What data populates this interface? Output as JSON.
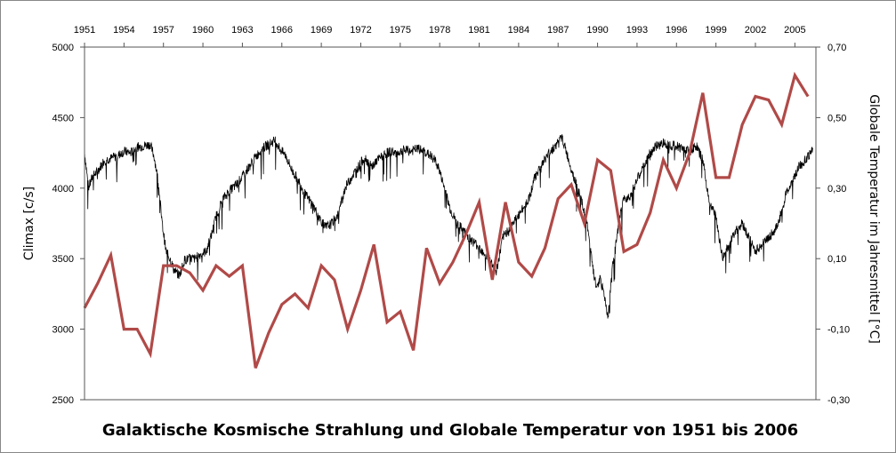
{
  "chart_data": {
    "type": "line",
    "title": "Galaktische  Kosmische Strahlung und Globale Temperatur von 1951 bis 2006",
    "left_axis_label": "Climax [c/s]",
    "right_axis_label": "Globale Temperatur im Jahresmittel [°C]",
    "x_ticks": [
      "1951",
      "1954",
      "1957",
      "1960",
      "1963",
      "1966",
      "1969",
      "1972",
      "1975",
      "1978",
      "1981",
      "1984",
      "1987",
      "1990",
      "1993",
      "1996",
      "1999",
      "2002",
      "2005"
    ],
    "xlim": [
      1951,
      2006.6
    ],
    "left_ticks": [
      "2500",
      "3000",
      "3500",
      "4000",
      "4500",
      "5000"
    ],
    "left_ylim": [
      2500,
      5000
    ],
    "right_ticks": [
      "-0,30",
      "-0,10",
      "0,10",
      "0,30",
      "0,50",
      "0,70"
    ],
    "right_ylim": [
      -0.3,
      0.7
    ],
    "grid": false,
    "colors": {
      "cosmic_ray": "#000000",
      "temperature": "#b04a48"
    },
    "series": [
      {
        "axis": "left",
        "x": [
          1951.0,
          1951.3,
          1951.6,
          1952.0,
          1952.5,
          1953.0,
          1953.5,
          1954.0,
          1954.5,
          1955.0,
          1955.5,
          1956.0,
          1956.3,
          1956.6,
          1956.9,
          1957.2,
          1957.5,
          1957.8,
          1958.2,
          1958.6,
          1959.0,
          1959.4,
          1959.8,
          1960.2,
          1960.6,
          1961.0,
          1961.5,
          1962.0,
          1962.5,
          1963.0,
          1963.5,
          1964.0,
          1964.5,
          1965.0,
          1965.5,
          1965.9,
          1966.3,
          1966.8,
          1967.3,
          1967.8,
          1968.3,
          1968.8,
          1969.3,
          1969.8,
          1970.3,
          1970.8,
          1971.3,
          1971.8,
          1972.3,
          1972.8,
          1973.3,
          1973.8,
          1974.3,
          1974.8,
          1975.3,
          1975.8,
          1976.3,
          1976.8,
          1977.3,
          1977.8,
          1978.3,
          1978.8,
          1979.3,
          1979.8,
          1980.3,
          1980.8,
          1981.3,
          1981.8,
          1982.3,
          1982.8,
          1983.3,
          1983.8,
          1984.3,
          1984.8,
          1985.3,
          1985.8,
          1986.3,
          1986.8,
          1987.3,
          1987.8,
          1988.3,
          1988.8,
          1989.3,
          1989.6,
          1989.9,
          1990.2,
          1990.5,
          1990.8,
          1991.1,
          1991.4,
          1991.7,
          1992.0,
          1992.5,
          1993.0,
          1993.5,
          1994.0,
          1994.5,
          1995.0,
          1995.5,
          1996.0,
          1996.5,
          1997.0,
          1997.5,
          1998.0,
          1998.5,
          1999.0,
          1999.5,
          2000.0,
          2000.5,
          2001.0,
          2001.5,
          2002.0,
          2002.5,
          2003.0,
          2003.5,
          2003.9,
          2004.3,
          2004.8,
          2005.3,
          2005.8,
          2006.4
        ],
        "values": [
          4260,
          4000,
          4080,
          4120,
          4200,
          4210,
          4230,
          4260,
          4250,
          4290,
          4300,
          4310,
          4220,
          4050,
          3750,
          3550,
          3500,
          3420,
          3380,
          3490,
          3500,
          3500,
          3530,
          3550,
          3650,
          3800,
          3920,
          3980,
          4020,
          4080,
          4150,
          4220,
          4280,
          4310,
          4340,
          4270,
          4230,
          4120,
          4050,
          3950,
          3890,
          3800,
          3720,
          3750,
          3820,
          4000,
          4080,
          4150,
          4220,
          4150,
          4200,
          4240,
          4260,
          4250,
          4270,
          4260,
          4280,
          4260,
          4230,
          4180,
          4020,
          3850,
          3750,
          3700,
          3640,
          3600,
          3550,
          3500,
          3400,
          3650,
          3720,
          3780,
          3850,
          3930,
          4100,
          4170,
          4250,
          4300,
          4360,
          4200,
          4050,
          3900,
          3700,
          3450,
          3300,
          3350,
          3250,
          3080,
          3420,
          3600,
          3800,
          3920,
          3950,
          4060,
          4150,
          4250,
          4300,
          4320,
          4310,
          4300,
          4280,
          4260,
          4300,
          4200,
          3900,
          3800,
          3500,
          3600,
          3700,
          3750,
          3650,
          3550,
          3600,
          3650,
          3700,
          3800,
          3950,
          4050,
          4150,
          4200,
          4280
        ]
      },
      {
        "axis": "right",
        "x": [
          1951,
          1952,
          1953,
          1954,
          1955,
          1956,
          1957,
          1958,
          1959,
          1960,
          1961,
          1962,
          1963,
          1964,
          1965,
          1966,
          1967,
          1968,
          1969,
          1970,
          1971,
          1972,
          1973,
          1974,
          1975,
          1976,
          1977,
          1978,
          1979,
          1980,
          1981,
          1982,
          1983,
          1984,
          1985,
          1986,
          1987,
          1988,
          1989,
          1990,
          1991,
          1992,
          1993,
          1994,
          1995,
          1996,
          1997,
          1998,
          1999,
          2000,
          2001,
          2002,
          2003,
          2004,
          2005,
          2006
        ],
        "values": [
          -0.04,
          0.03,
          0.11,
          -0.1,
          -0.1,
          -0.17,
          0.08,
          0.08,
          0.06,
          0.01,
          0.08,
          0.05,
          0.08,
          -0.21,
          -0.11,
          -0.03,
          0.0,
          -0.04,
          0.08,
          0.04,
          -0.1,
          0.01,
          0.14,
          -0.08,
          -0.05,
          -0.16,
          0.13,
          0.03,
          0.09,
          0.17,
          0.26,
          0.04,
          0.26,
          0.09,
          0.05,
          0.13,
          0.27,
          0.31,
          0.2,
          0.38,
          0.35,
          0.12,
          0.14,
          0.23,
          0.38,
          0.3,
          0.4,
          0.57,
          0.33,
          0.33,
          0.48,
          0.56,
          0.55,
          0.48,
          0.62,
          0.56
        ]
      }
    ]
  }
}
